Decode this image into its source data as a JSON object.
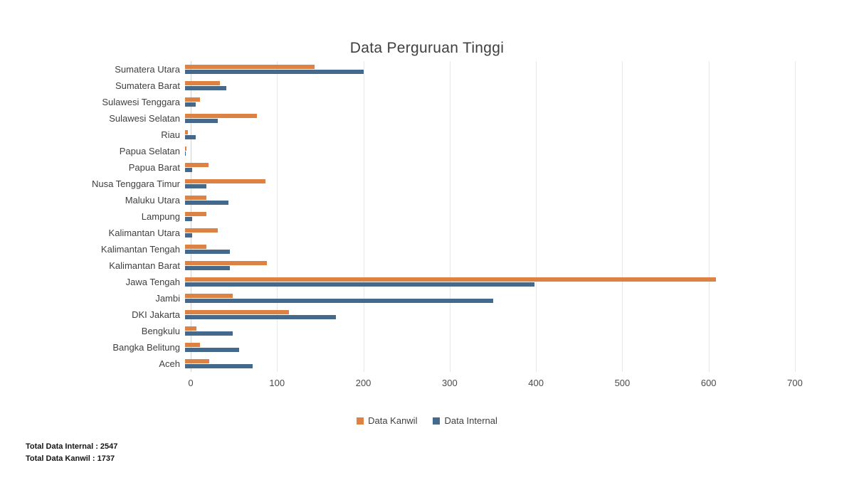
{
  "title": "Data Perguruan Tinggi",
  "footer": {
    "total_internal": "Total Data Internal : 2547",
    "total_kanwil": "Total Data Kanwil : 1737"
  },
  "colors": {
    "kanwil": "#DE8244",
    "internal": "#44698D",
    "gridline": "#e8e8e8",
    "text": "#404040"
  },
  "chart_data": {
    "type": "bar",
    "orientation": "horizontal",
    "title": "Data Perguruan Tinggi",
    "xlabel": "",
    "ylabel": "",
    "xlim": [
      0,
      700
    ],
    "xticks": [
      0,
      100,
      200,
      300,
      400,
      500,
      600,
      700
    ],
    "grid": true,
    "legend_position": "bottom",
    "categories": [
      "Sumatera Utara",
      "Sumatera Barat",
      "Sulawesi Tenggara",
      "Sulawesi Selatan",
      "Riau",
      "Papua Selatan",
      "Papua Barat",
      "Nusa Tenggara Timur",
      "Maluku Utara",
      "Lampung",
      "Kalimantan Utara",
      "Kalimantan Tengah",
      "Kalimantan Barat",
      "Jawa Tengah",
      "Jambi",
      "DKI Jakarta",
      "Bengkulu",
      "Bangka Belitung",
      "Aceh"
    ],
    "series": [
      {
        "name": "Data Kanwil",
        "color": "#DE8244",
        "values": [
          150,
          40,
          17,
          83,
          3,
          2,
          27,
          93,
          25,
          25,
          38,
          25,
          95,
          615,
          55,
          120,
          13,
          17,
          28
        ]
      },
      {
        "name": "Data Internal",
        "color": "#44698D",
        "values": [
          207,
          48,
          12,
          38,
          12,
          1,
          8,
          25,
          50,
          8,
          8,
          52,
          52,
          405,
          357,
          175,
          55,
          63,
          78
        ]
      }
    ]
  }
}
